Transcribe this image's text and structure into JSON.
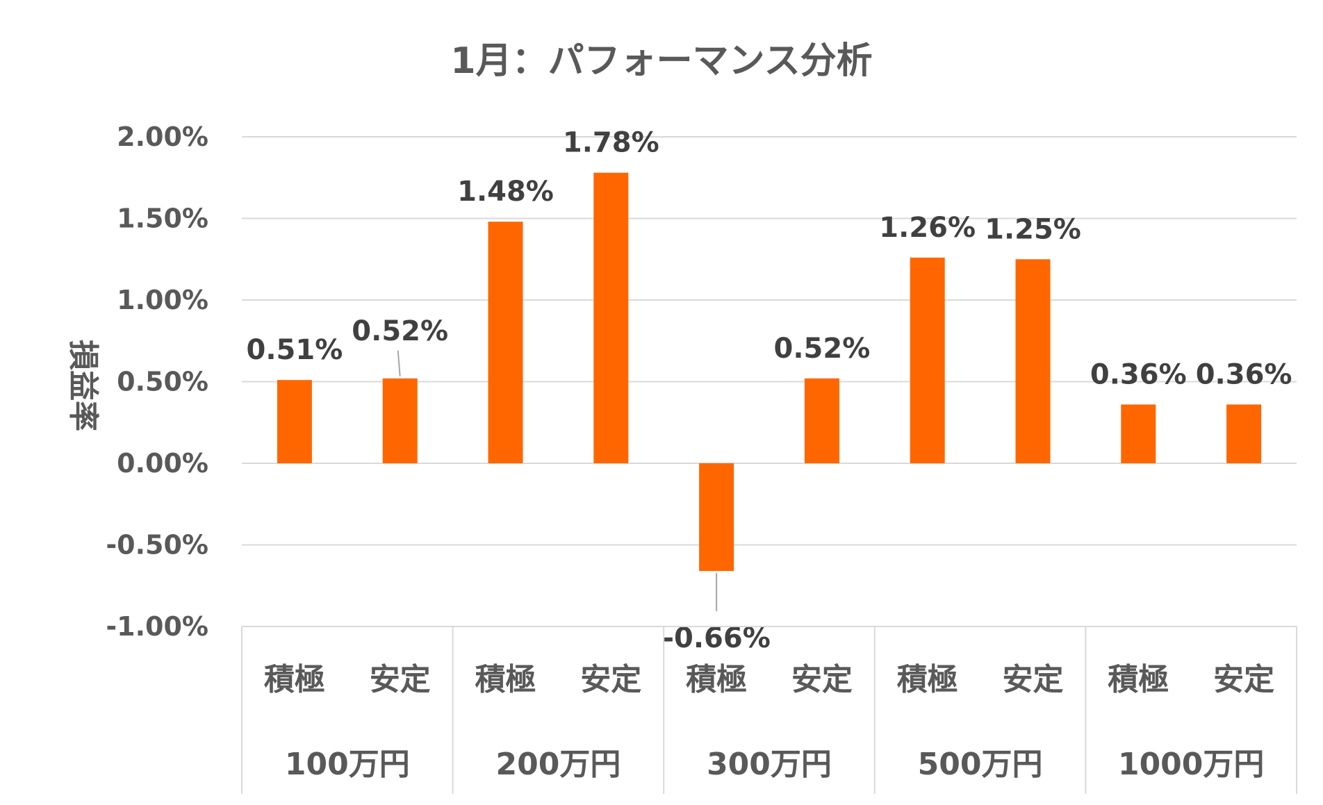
{
  "chart_data": {
    "type": "bar",
    "title": "1月：パフォーマンス分析",
    "ylabel": "損益率",
    "xlabel": "",
    "ylim": [
      -1.0,
      2.0
    ],
    "yticks": [
      "2.00%",
      "1.50%",
      "1.00%",
      "0.50%",
      "0.00%",
      "-0.50%",
      "-1.00%"
    ],
    "grid": true,
    "bar_color": "#FF6600",
    "groups": [
      "100万円",
      "200万円",
      "300万円",
      "500万円",
      "1000万円"
    ],
    "categories": [
      "積極",
      "安定",
      "積極",
      "安定",
      "積極",
      "安定",
      "積極",
      "安定",
      "積極",
      "安定"
    ],
    "values": [
      0.51,
      0.52,
      1.48,
      1.78,
      -0.66,
      0.52,
      1.26,
      1.25,
      0.36,
      0.36
    ],
    "labels": [
      "0.51%",
      "0.52%",
      "1.48%",
      "1.78%",
      "-0.66%",
      "0.52%",
      "1.26%",
      "1.25%",
      "0.36%",
      "0.36%"
    ]
  }
}
